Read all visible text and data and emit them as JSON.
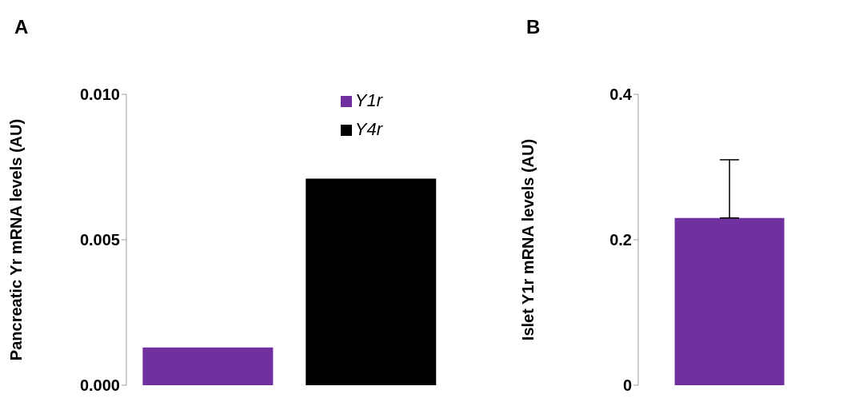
{
  "chart_data": [
    {
      "type": "bar",
      "title": "A",
      "ylabel": "Pancreatic Yr mRNA levels (AU)",
      "categories": [
        null,
        null
      ],
      "series": [
        {
          "name": "Y1r",
          "color": "#7030a0",
          "values": [
            0.0013,
            null
          ]
        },
        {
          "name": "Y4r",
          "color": "#000000",
          "values": [
            null,
            0.0071
          ]
        }
      ],
      "stacked": true,
      "ylim": [
        0,
        0.01
      ],
      "yticks": [
        {
          "value": 0,
          "label": "0.000"
        },
        {
          "value": 0.005,
          "label": "0.005"
        },
        {
          "value": 0.01,
          "label": "0.010"
        }
      ],
      "grid": false,
      "legend": "top right"
    },
    {
      "type": "bar",
      "title": "B",
      "ylabel": "Islet Y1r mRNA levels (AU)",
      "categories": [
        null
      ],
      "values": [
        0.23
      ],
      "color": "#7030a0",
      "errors": [
        [
          0.23,
          0.31
        ]
      ],
      "ylim": [
        0,
        0.4
      ],
      "yticks": [
        0,
        0.2,
        0.4
      ],
      "grid": false,
      "legend": false
    }
  ]
}
